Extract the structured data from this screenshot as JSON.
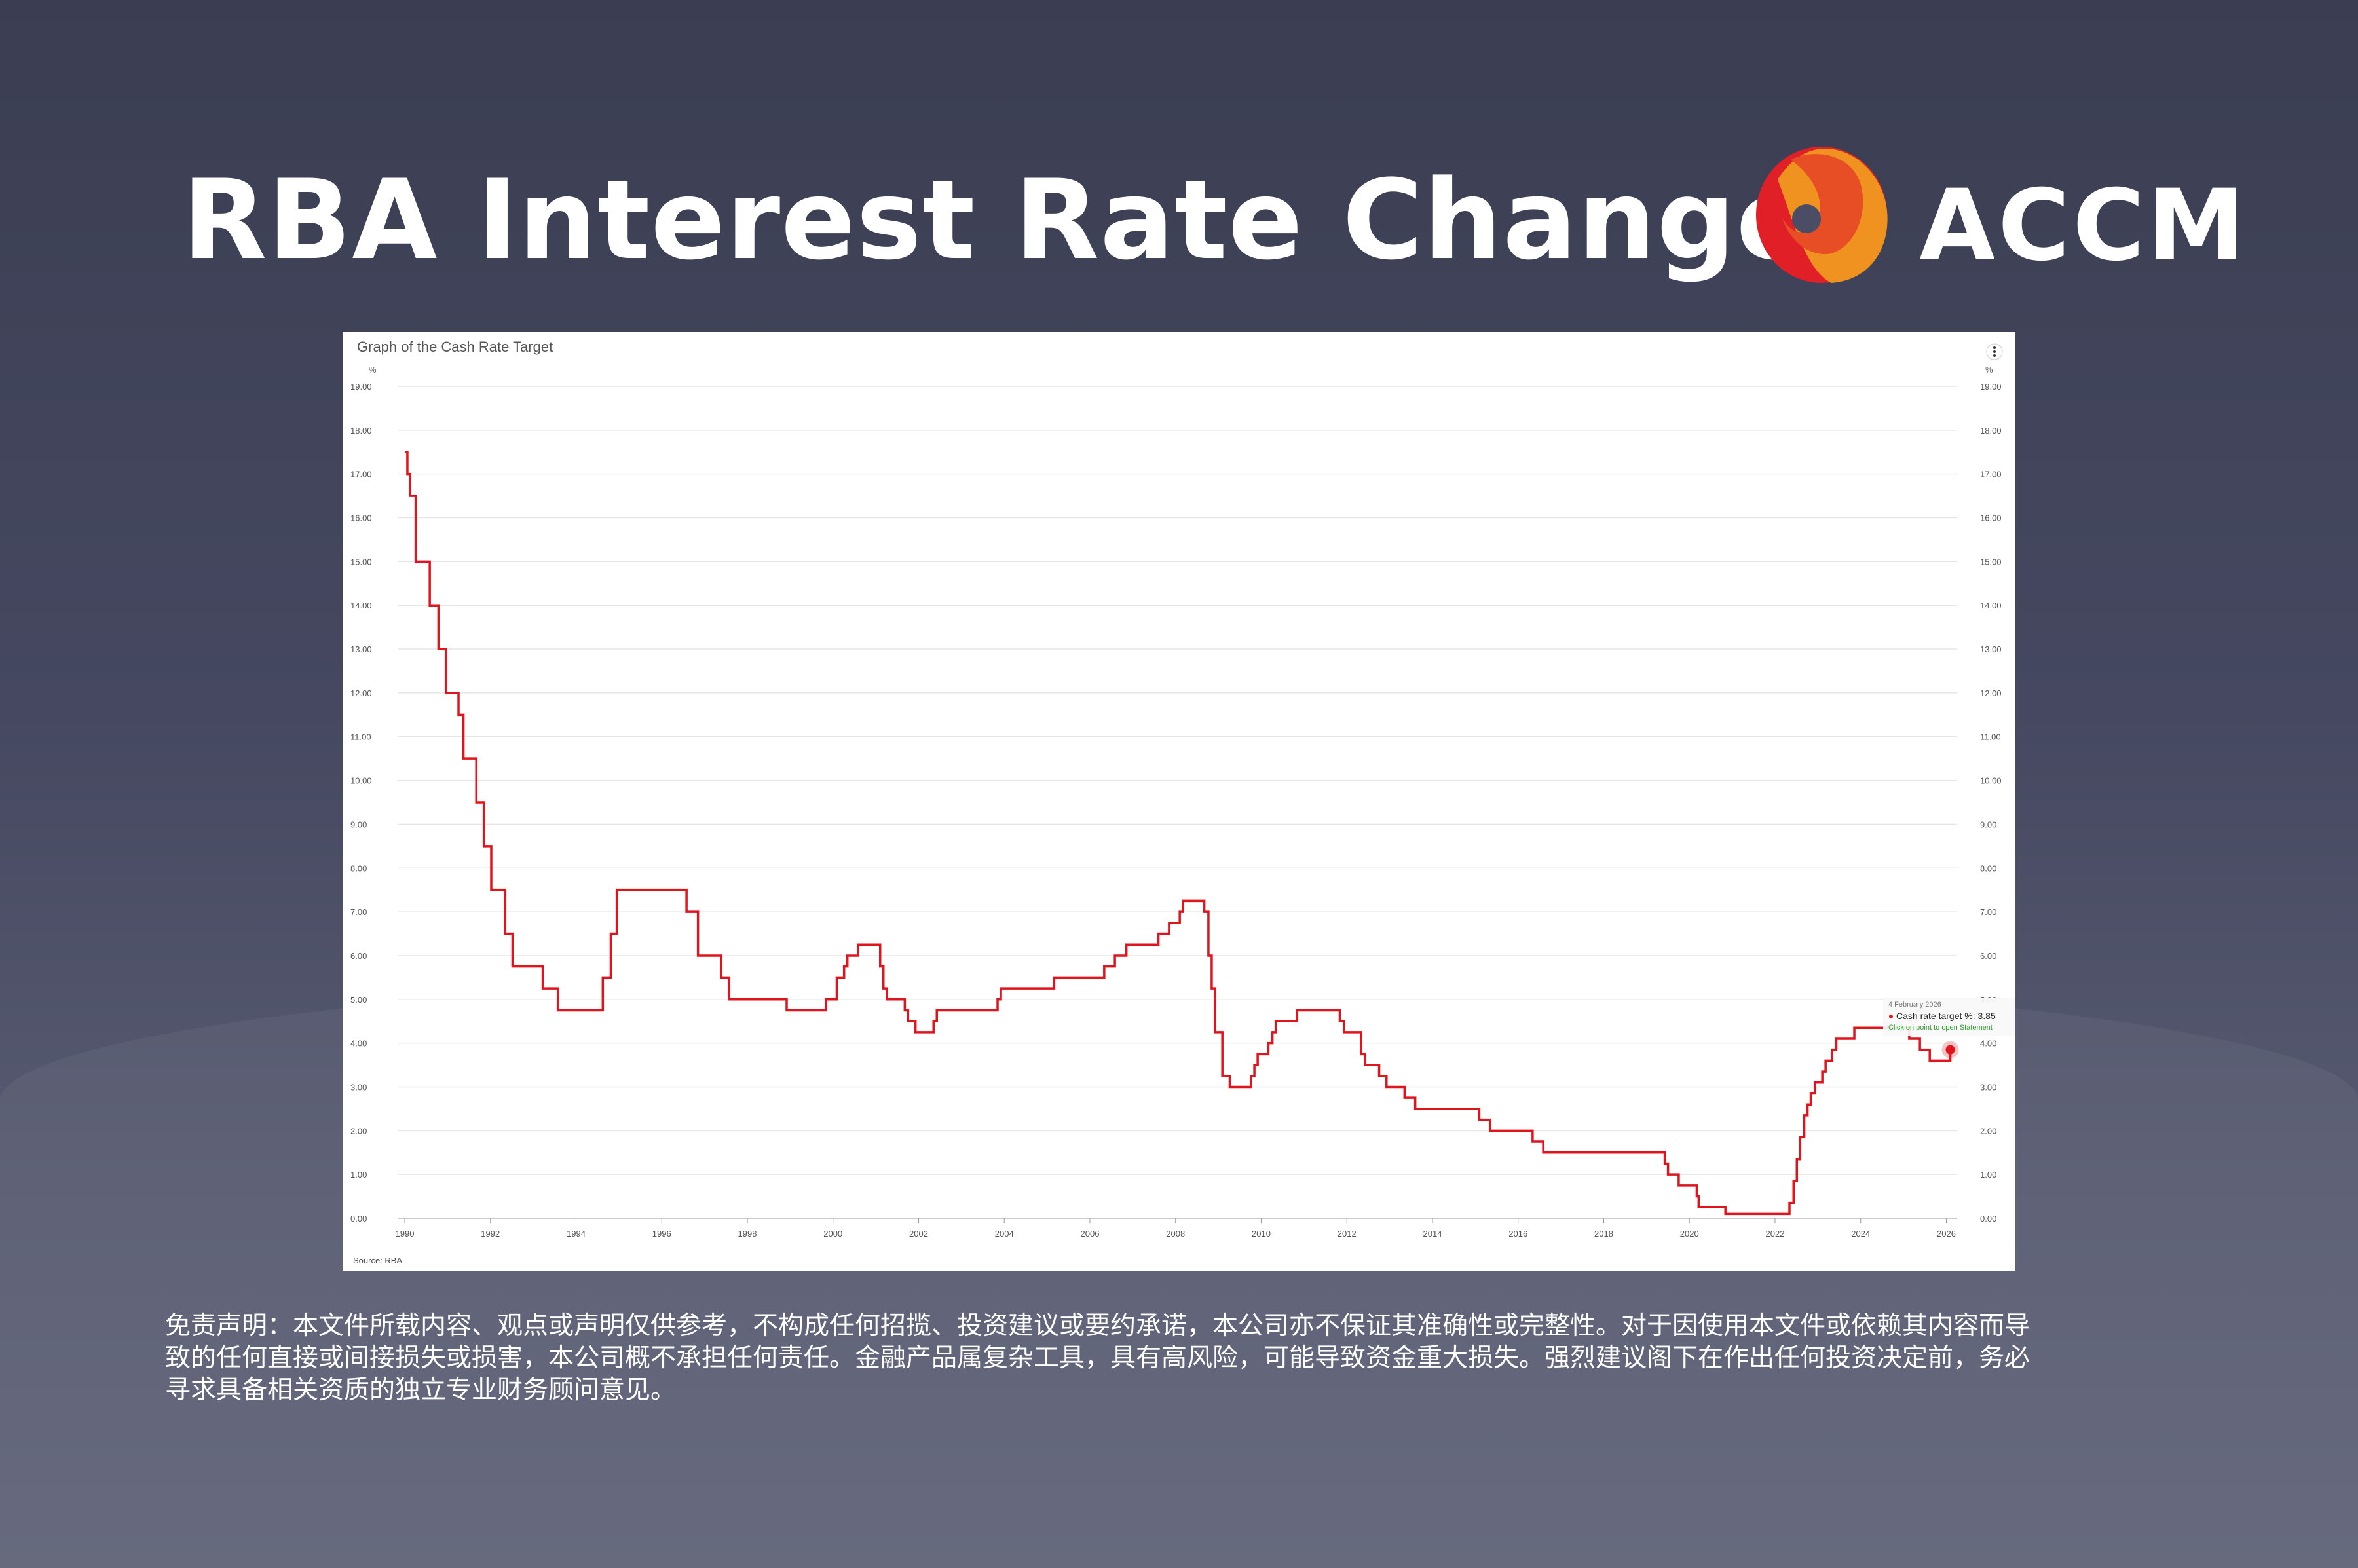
{
  "header": {
    "title": "RBA Interest Rate Changes",
    "logo_text": "ACCM"
  },
  "colors": {
    "line": "#e0141c",
    "logo_red": "#e11f26",
    "logo_orange_red": "#e84e25",
    "logo_orange": "#f0921f",
    "tooltip_link": "#2e9e2e"
  },
  "chart_data": {
    "type": "line",
    "step": true,
    "title": "Graph of the Cash Rate Target",
    "ylabel": "%",
    "source": "Source: RBA",
    "ylim": [
      0,
      19
    ],
    "xlim": [
      1990,
      2026.1
    ],
    "yticks": [
      "0.00",
      "1.00",
      "2.00",
      "3.00",
      "4.00",
      "5.00",
      "6.00",
      "7.00",
      "8.00",
      "9.00",
      "10.00",
      "11.00",
      "12.00",
      "13.00",
      "14.00",
      "15.00",
      "16.00",
      "17.00",
      "18.00",
      "19.00"
    ],
    "xticks": [
      "1990",
      "1992",
      "1994",
      "1996",
      "1998",
      "2000",
      "2002",
      "2004",
      "2006",
      "2008",
      "2010",
      "2012",
      "2014",
      "2016",
      "2018",
      "2020",
      "2022",
      "2024",
      "2026"
    ],
    "grid": true,
    "legend": "none",
    "series": [
      {
        "values": [
          [
            "1990-01-02",
            17.5
          ],
          [
            "1990-01-23",
            17.0
          ],
          [
            "1990-02-15",
            16.5
          ],
          [
            "1990-04-04",
            15.0
          ],
          [
            "1990-08-02",
            14.0
          ],
          [
            "1990-10-15",
            13.0
          ],
          [
            "1990-12-18",
            12.0
          ],
          [
            "1991-04-04",
            11.5
          ],
          [
            "1991-05-16",
            10.5
          ],
          [
            "1991-09-03",
            9.5
          ],
          [
            "1991-11-06",
            8.5
          ],
          [
            "1992-01-08",
            7.5
          ],
          [
            "1992-05-06",
            6.5
          ],
          [
            "1992-07-08",
            5.75
          ],
          [
            "1993-03-23",
            5.25
          ],
          [
            "1993-07-30",
            4.75
          ],
          [
            "1994-08-17",
            5.5
          ],
          [
            "1994-10-24",
            6.5
          ],
          [
            "1994-12-14",
            7.5
          ],
          [
            "1996-07-31",
            7.0
          ],
          [
            "1996-11-06",
            6.0
          ],
          [
            "1997-05-23",
            5.5
          ],
          [
            "1997-07-30",
            5.0
          ],
          [
            "1998-12-02",
            4.75
          ],
          [
            "1999-11-03",
            5.0
          ],
          [
            "2000-02-02",
            5.5
          ],
          [
            "2000-04-05",
            5.75
          ],
          [
            "2000-05-03",
            6.0
          ],
          [
            "2000-08-02",
            6.25
          ],
          [
            "2001-02-07",
            5.75
          ],
          [
            "2001-03-07",
            5.25
          ],
          [
            "2001-04-04",
            5.0
          ],
          [
            "2001-09-05",
            4.75
          ],
          [
            "2001-10-03",
            4.5
          ],
          [
            "2001-12-05",
            4.25
          ],
          [
            "2002-05-08",
            4.5
          ],
          [
            "2002-06-05",
            4.75
          ],
          [
            "2003-11-05",
            5.0
          ],
          [
            "2003-12-03",
            5.25
          ],
          [
            "2005-03-02",
            5.5
          ],
          [
            "2006-05-03",
            5.75
          ],
          [
            "2006-08-02",
            6.0
          ],
          [
            "2006-11-08",
            6.25
          ],
          [
            "2007-08-08",
            6.5
          ],
          [
            "2007-11-07",
            6.75
          ],
          [
            "2008-02-06",
            7.0
          ],
          [
            "2008-03-05",
            7.25
          ],
          [
            "2008-09-03",
            7.0
          ],
          [
            "2008-10-08",
            6.0
          ],
          [
            "2008-11-05",
            5.25
          ],
          [
            "2008-12-03",
            4.25
          ],
          [
            "2009-02-04",
            3.25
          ],
          [
            "2009-04-08",
            3.0
          ],
          [
            "2009-10-07",
            3.25
          ],
          [
            "2009-11-04",
            3.5
          ],
          [
            "2009-12-02",
            3.75
          ],
          [
            "2010-03-03",
            4.0
          ],
          [
            "2010-04-07",
            4.25
          ],
          [
            "2010-05-05",
            4.5
          ],
          [
            "2010-11-03",
            4.75
          ],
          [
            "2011-11-02",
            4.5
          ],
          [
            "2011-12-07",
            4.25
          ],
          [
            "2012-05-02",
            3.75
          ],
          [
            "2012-06-06",
            3.5
          ],
          [
            "2012-10-03",
            3.25
          ],
          [
            "2012-12-05",
            3.0
          ],
          [
            "2013-05-08",
            2.75
          ],
          [
            "2013-08-07",
            2.5
          ],
          [
            "2015-02-04",
            2.25
          ],
          [
            "2015-05-06",
            2.0
          ],
          [
            "2016-05-04",
            1.75
          ],
          [
            "2016-08-03",
            1.5
          ],
          [
            "2019-06-05",
            1.25
          ],
          [
            "2019-07-03",
            1.0
          ],
          [
            "2019-10-02",
            0.75
          ],
          [
            "2020-03-04",
            0.5
          ],
          [
            "2020-03-20",
            0.25
          ],
          [
            "2020-11-04",
            0.1
          ],
          [
            "2022-05-04",
            0.35
          ],
          [
            "2022-06-08",
            0.85
          ],
          [
            "2022-07-06",
            1.35
          ],
          [
            "2022-08-03",
            1.85
          ],
          [
            "2022-09-07",
            2.35
          ],
          [
            "2022-10-05",
            2.6
          ],
          [
            "2022-11-02",
            2.85
          ],
          [
            "2022-12-07",
            3.1
          ],
          [
            "2023-02-08",
            3.35
          ],
          [
            "2023-03-08",
            3.6
          ],
          [
            "2023-05-03",
            3.85
          ],
          [
            "2023-06-07",
            4.1
          ],
          [
            "2023-11-08",
            4.35
          ],
          [
            "2025-02-19",
            4.1
          ],
          [
            "2025-05-21",
            3.85
          ],
          [
            "2025-08-13",
            3.6
          ],
          [
            "2026-02-04",
            3.85
          ]
        ]
      }
    ],
    "tooltip": {
      "date": "4 February 2026",
      "label": "Cash rate target %: 3.85",
      "hint": "Click on point to open Statement"
    }
  },
  "disclaimer": [
    "免责声明：本文件所载内容、观点或声明仅供参考，不构成任何招揽、投资建议或要约承诺，本公司亦不保证其准确性或完整性。对于因使用本文件或依赖其内容而导",
    "致的任何直接或间接损失或损害，本公司概不承担任何责任。金融产品属复杂工具，具有高风险，可能导致资金重大损失。强烈建议阁下在作出任何投资决定前，务必",
    "寻求具备相关资质的独立专业财务顾问意见。"
  ]
}
